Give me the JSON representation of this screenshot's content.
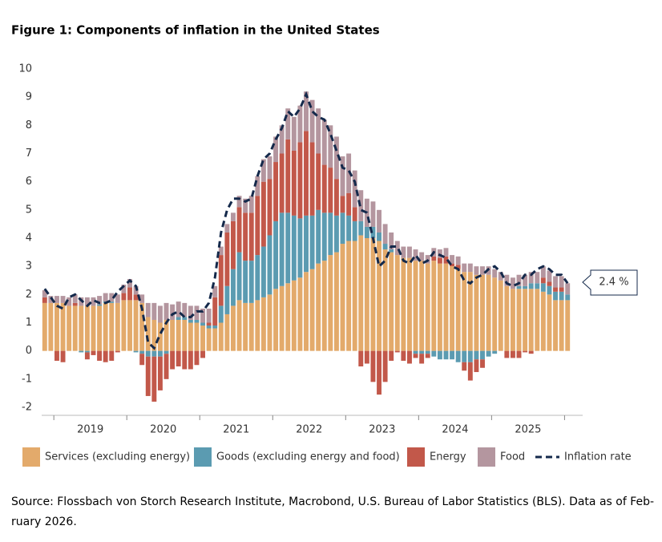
{
  "chart_data": {
    "type": "stacked-bar-line",
    "title": "Figure 1: Components of inflation in the United States",
    "year_labels": [
      "2019",
      "2020",
      "2021",
      "2022",
      "2023",
      "2024",
      "2025"
    ],
    "ylim": [
      -2,
      10
    ],
    "yticks": [
      -2,
      -1,
      0,
      1,
      2,
      3,
      4,
      5,
      6,
      7,
      8,
      9,
      10
    ],
    "grid": false,
    "series": [
      {
        "name": "Services (excluding energy)",
        "color": "#e3aa6b",
        "values": [
          1.7,
          1.7,
          1.7,
          1.7,
          1.6,
          1.6,
          1.6,
          1.6,
          1.6,
          1.6,
          1.7,
          1.7,
          1.7,
          1.8,
          1.8,
          1.8,
          1.7,
          1.2,
          1.1,
          1.0,
          1.1,
          1.1,
          1.1,
          1.1,
          1.0,
          1.0,
          0.9,
          0.8,
          0.8,
          1.0,
          1.3,
          1.6,
          1.8,
          1.7,
          1.7,
          1.8,
          1.9,
          2.0,
          2.2,
          2.3,
          2.4,
          2.5,
          2.6,
          2.8,
          2.9,
          3.1,
          3.2,
          3.4,
          3.5,
          3.8,
          3.9,
          3.9,
          4.1,
          4.0,
          4.0,
          3.9,
          3.6,
          3.5,
          3.4,
          3.3,
          3.3,
          3.2,
          3.2,
          3.1,
          3.2,
          3.1,
          3.1,
          3.0,
          2.9,
          2.8,
          2.8,
          2.7,
          2.7,
          2.7,
          2.6,
          2.5,
          2.3,
          2.2,
          2.2,
          2.2,
          2.2,
          2.2,
          2.1,
          2.0,
          1.8,
          1.8,
          1.8
        ]
      },
      {
        "name": "Goods (excluding energy and food)",
        "color": "#5b9bb1",
        "values": [
          0,
          0,
          0,
          0,
          0,
          0,
          -0.05,
          -0.05,
          0,
          0.05,
          0.05,
          0.05,
          0,
          0,
          0,
          -0.05,
          -0.1,
          -0.2,
          -0.2,
          -0.2,
          -0.1,
          0,
          0.1,
          0.1,
          0.1,
          0.1,
          0.1,
          0.1,
          0.1,
          0.6,
          1.0,
          1.3,
          1.7,
          1.5,
          1.5,
          1.6,
          1.8,
          2.1,
          2.4,
          2.6,
          2.5,
          2.3,
          2.1,
          2.0,
          1.9,
          1.9,
          1.7,
          1.5,
          1.3,
          1.1,
          0.9,
          0.7,
          0.5,
          0.4,
          0.4,
          0.3,
          0.2,
          0.1,
          0,
          0,
          0,
          -0.1,
          -0.1,
          -0.1,
          -0.2,
          -0.3,
          -0.3,
          -0.3,
          -0.4,
          -0.4,
          -0.4,
          -0.3,
          -0.3,
          -0.2,
          -0.1,
          0,
          0,
          0,
          0.1,
          0.1,
          0.2,
          0.2,
          0.3,
          0.3,
          0.3,
          0.3,
          0.2
        ]
      },
      {
        "name": "Energy",
        "color": "#c2584a",
        "values": [
          0.2,
          0,
          -0.35,
          -0.4,
          0,
          0.1,
          0,
          -0.25,
          -0.15,
          -0.35,
          -0.4,
          -0.35,
          -0.05,
          0.25,
          0.45,
          0.2,
          -0.4,
          -1.4,
          -1.6,
          -1.2,
          -0.9,
          -0.65,
          -0.55,
          -0.65,
          -0.65,
          -0.5,
          -0.25,
          0.1,
          1.0,
          1.8,
          1.9,
          1.7,
          1.6,
          1.7,
          1.7,
          2.1,
          2.3,
          2.0,
          2.1,
          2.1,
          2.6,
          2.3,
          2.7,
          3.0,
          2.6,
          2.0,
          1.7,
          1.6,
          1.3,
          0.6,
          0.8,
          0.5,
          -0.55,
          -0.45,
          -1.1,
          -1.55,
          -1.1,
          -0.35,
          -0.05,
          -0.35,
          -0.45,
          -0.15,
          -0.35,
          -0.15,
          0.15,
          0.2,
          0.25,
          0.1,
          0.15,
          -0.3,
          -0.65,
          -0.45,
          -0.3,
          0,
          0,
          0,
          -0.25,
          -0.25,
          -0.25,
          -0.05,
          -0.1,
          0,
          0.2,
          0.15,
          0.15,
          0.15,
          0
        ]
      },
      {
        "name": "Food",
        "color": "#b4969f",
        "values": [
          0.25,
          0.25,
          0.25,
          0.25,
          0.3,
          0.3,
          0.3,
          0.3,
          0.3,
          0.3,
          0.3,
          0.3,
          0.3,
          0.3,
          0.3,
          0.3,
          0.3,
          0.5,
          0.6,
          0.6,
          0.6,
          0.55,
          0.55,
          0.5,
          0.5,
          0.5,
          0.5,
          0.5,
          0.4,
          0.3,
          0.3,
          0.3,
          0.4,
          0.5,
          0.6,
          0.7,
          0.8,
          0.8,
          0.9,
          1.0,
          1.1,
          1.2,
          1.3,
          1.4,
          1.5,
          1.6,
          1.6,
          1.5,
          1.5,
          1.4,
          1.4,
          1.3,
          1.1,
          1.0,
          0.9,
          0.8,
          0.7,
          0.6,
          0.5,
          0.4,
          0.4,
          0.4,
          0.3,
          0.3,
          0.3,
          0.3,
          0.3,
          0.3,
          0.3,
          0.3,
          0.3,
          0.3,
          0.3,
          0.3,
          0.3,
          0.3,
          0.4,
          0.4,
          0.4,
          0.4,
          0.4,
          0.4,
          0.4,
          0.4,
          0.4,
          0.4,
          0.4
        ]
      }
    ],
    "line": {
      "name": "Inflation rate",
      "color": "#14294b",
      "values": [
        2.2,
        1.9,
        1.6,
        1.5,
        1.9,
        2.0,
        1.8,
        1.6,
        1.8,
        1.7,
        1.7,
        1.8,
        2.1,
        2.3,
        2.5,
        2.3,
        1.5,
        0.3,
        0.1,
        0.6,
        1.0,
        1.3,
        1.4,
        1.2,
        1.2,
        1.4,
        1.4,
        1.7,
        2.6,
        4.2,
        5.0,
        5.4,
        5.4,
        5.3,
        5.4,
        6.2,
        6.8,
        7.0,
        7.5,
        7.9,
        8.5,
        8.3,
        8.6,
        9.1,
        8.5,
        8.3,
        8.2,
        7.7,
        7.1,
        6.5,
        6.4,
        6.0,
        5.0,
        4.9,
        4.0,
        3.0,
        3.2,
        3.7,
        3.7,
        3.2,
        3.1,
        3.4,
        3.1,
        3.2,
        3.5,
        3.4,
        3.3,
        3.0,
        2.9,
        2.5,
        2.4,
        2.6,
        2.7,
        2.9,
        3.0,
        2.8,
        2.4,
        2.3,
        2.4,
        2.7,
        2.7,
        2.9,
        3.0,
        2.9,
        2.7,
        2.7,
        2.4
      ]
    },
    "annotation": "2.4 %",
    "source": [
      "Source: Flossbach von Storch Research Institute, Macrobond, U.S. Bureau of Labor Statistics (BLS). Data as of Feb-",
      "ruary 2026."
    ]
  }
}
